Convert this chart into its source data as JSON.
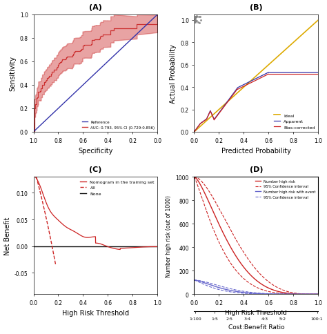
{
  "panel_A": {
    "title": "(A)",
    "xlabel": "Specificity",
    "ylabel": "Sensitivity",
    "xlim": [
      1.0,
      0.0
    ],
    "ylim": [
      0.0,
      1.0
    ],
    "xticks": [
      1.0,
      0.8,
      0.6,
      0.4,
      0.2,
      0.0
    ],
    "yticks": [
      0.0,
      0.2,
      0.4,
      0.6,
      0.8,
      1.0
    ],
    "ref_color": "#3333AA",
    "roc_color": "#CC3333",
    "fill_color": "#CC3333",
    "fill_alpha": 0.45,
    "legend_ref": "Reference",
    "legend_roc": "AUC: 0.793, 95% CI (0.729-0.856)"
  },
  "panel_B": {
    "title": "(B)",
    "xlabel": "Predicted Probability",
    "ylabel": "Actual Probability",
    "xlim": [
      0.0,
      1.0
    ],
    "ylim": [
      0.0,
      1.05
    ],
    "xticks": [
      0.0,
      0.2,
      0.4,
      0.6,
      0.8,
      1.0
    ],
    "yticks": [
      0.0,
      0.2,
      0.4,
      0.6,
      0.8,
      1.0
    ],
    "apparent_color": "#3333AA",
    "biascorr_color": "#CC2222",
    "ideal_color": "#DDAA00",
    "legend_apparent": "Apparent",
    "legend_biascorr": "Bias-corrected",
    "legend_ideal": "Ideal"
  },
  "panel_C": {
    "title": "(C)",
    "xlabel": "High Risk Threshold",
    "ylabel": "Net Benefit",
    "xlim": [
      0.0,
      1.0
    ],
    "ylim": [
      -0.09,
      0.13
    ],
    "xticks": [
      0.0,
      0.2,
      0.4,
      0.6,
      0.8,
      1.0
    ],
    "yticks": [
      -0.05,
      0.0,
      0.05,
      0.1
    ],
    "nomogram_color": "#CC2222",
    "all_color": "#CC2222",
    "none_color": "#111111",
    "legend_nomogram": "Nomogram in the training set",
    "legend_all": "All",
    "legend_none": "None"
  },
  "panel_D": {
    "title": "(D)",
    "xlabel_top": "High Risk Threshold",
    "xlabel_bot": "Cost:Benefit Ratio",
    "ylabel": "Number high risk (out of 1000)",
    "xlim": [
      0.0,
      1.0
    ],
    "ylim": [
      0,
      1000
    ],
    "yticks": [
      0,
      200,
      400,
      600,
      800,
      1000
    ],
    "highrisk_color": "#CC2222",
    "highrisk_event_color": "#6666CC",
    "legend_highrisk": "Number high risk",
    "legend_ci_red": "95% Confidence interval",
    "legend_highrisk_event": "Number high risk with event",
    "legend_ci_blue": "95% Confidence interval"
  },
  "figure_bg": "#FFFFFF"
}
